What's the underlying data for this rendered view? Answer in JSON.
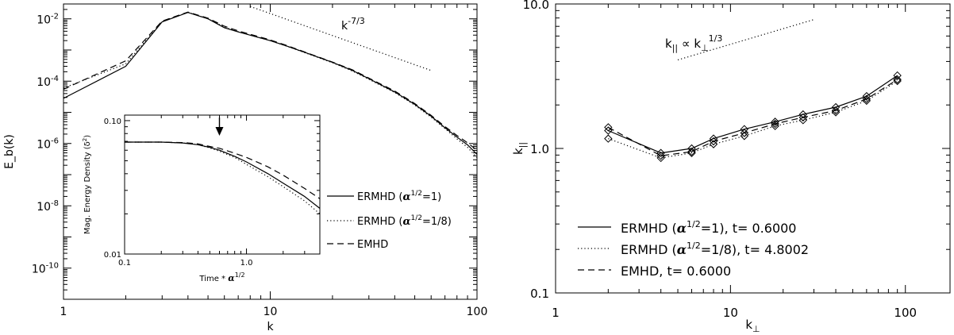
{
  "chart_data": [
    {
      "type": "line",
      "xscale": "log",
      "yscale": "log",
      "xlim": [
        1,
        100
      ],
      "ylim": [
        1e-11,
        0.03
      ],
      "xlabel": "k",
      "ylabel": "E_b(k)",
      "xticks": [
        {
          "v": 1,
          "label": "1"
        },
        {
          "v": 10,
          "label": "10"
        },
        {
          "v": 100,
          "label": "100"
        }
      ],
      "yticks": [
        {
          "v": 0.01,
          "base": "10",
          "exp": "-2"
        },
        {
          "v": 0.0001,
          "base": "10",
          "exp": "-4"
        },
        {
          "v": 1e-06,
          "base": "10",
          "exp": "-6"
        },
        {
          "v": 1e-08,
          "base": "10",
          "exp": "-8"
        },
        {
          "v": 1e-10,
          "base": "10",
          "exp": "-10"
        }
      ],
      "series": [
        {
          "name": "ERMHD (α1/2=1)",
          "dash": "solid",
          "x": [
            1,
            2,
            3,
            4,
            5,
            6,
            7,
            8,
            10,
            12,
            15,
            20,
            25,
            30,
            40,
            50,
            60,
            70,
            80,
            90,
            100
          ],
          "y": [
            2.8e-05,
            0.0003,
            0.008,
            0.016,
            0.01,
            0.0052,
            0.0038,
            0.003,
            0.002,
            0.00135,
            0.0008,
            0.0004,
            0.00022,
            0.00012,
            4.5e-05,
            1.8e-05,
            7.5e-06,
            3.2e-06,
            1.6e-06,
            9e-07,
            4.5e-07
          ]
        },
        {
          "name": "ERMHD (α1/2=1/8)",
          "dash": "dotted",
          "x": [
            1,
            2,
            3,
            4,
            5,
            6,
            7,
            8,
            10,
            12,
            15,
            20,
            25,
            30,
            40,
            50,
            60,
            70,
            80,
            90,
            100
          ],
          "y": [
            6e-05,
            0.00036,
            0.0082,
            0.0162,
            0.01,
            0.0054,
            0.0039,
            0.003,
            0.002,
            0.00133,
            0.00078,
            0.00039,
            0.00021,
            0.000115,
            4.3e-05,
            1.7e-05,
            7e-06,
            3e-06,
            1.4e-06,
            7.5e-07,
            3.5e-07
          ]
        },
        {
          "name": "EMHD",
          "dash": "dashed",
          "x": [
            1,
            2,
            3,
            4,
            5,
            6,
            7,
            8,
            10,
            12,
            15,
            20,
            25,
            30,
            40,
            50,
            60,
            70,
            80,
            90,
            100
          ],
          "y": [
            5.5e-05,
            0.00045,
            0.0085,
            0.0165,
            0.0105,
            0.0058,
            0.0041,
            0.0032,
            0.0021,
            0.0014,
            0.00082,
            0.00041,
            0.00023,
            0.000125,
            4.8e-05,
            1.9e-05,
            8e-06,
            3.5e-06,
            1.8e-06,
            1.05e-06,
            6e-07
          ]
        }
      ],
      "slope_line": {
        "x": [
          8,
          60
        ],
        "y": [
          0.025,
          0.00022
        ],
        "base": "k",
        "exp": "-7/3"
      },
      "legend": {
        "placement": "right-middle"
      },
      "inset": {
        "xscale": "log",
        "yscale": "log",
        "xlim": [
          0.1,
          4
        ],
        "ylim": [
          0.01,
          0.11
        ],
        "xlabel_main": "Time * ",
        "xlabel_alpha": "α",
        "xlabel_exp": "1/2",
        "ylabel_main": "Mag. Energy Density ",
        "ylabel_delta": "(δ",
        "ylabel_exp": "2",
        "ylabel_close": ")",
        "xticks": [
          {
            "v": 0.1,
            "label": "0.1"
          },
          {
            "v": 1,
            "label": "1.0"
          }
        ],
        "yticks": [
          {
            "v": 0.1,
            "label": "0.10"
          },
          {
            "v": 0.01,
            "label": "0.01"
          }
        ],
        "arrow_at": 0.6,
        "series": [
          {
            "dash": "solid",
            "x": [
              0.1,
              0.2,
              0.3,
              0.4,
              0.5,
              0.6,
              0.8,
              1.0,
              1.5,
              2.0,
              3.0,
              4.0
            ],
            "y": [
              0.069,
              0.069,
              0.068,
              0.066,
              0.063,
              0.06,
              0.054,
              0.049,
              0.04,
              0.034,
              0.027,
              0.022
            ]
          },
          {
            "dash": "dotted",
            "x": [
              0.1,
              0.2,
              0.3,
              0.4,
              0.5,
              0.6,
              0.8,
              1.0,
              1.5,
              2.0,
              3.0,
              4.0
            ],
            "y": [
              0.069,
              0.069,
              0.068,
              0.066,
              0.0625,
              0.059,
              0.053,
              0.047,
              0.038,
              0.032,
              0.025,
              0.02
            ]
          },
          {
            "dash": "dashed",
            "x": [
              0.1,
              0.2,
              0.3,
              0.4,
              0.5,
              0.6,
              0.8,
              1.0,
              1.5,
              2.0,
              3.0,
              4.0
            ],
            "y": [
              0.069,
              0.069,
              0.0685,
              0.067,
              0.064,
              0.062,
              0.057,
              0.053,
              0.045,
              0.039,
              0.031,
              0.026
            ]
          }
        ]
      }
    },
    {
      "type": "line",
      "xscale": "log",
      "yscale": "log",
      "xlim": [
        1,
        180
      ],
      "ylim": [
        0.1,
        10
      ],
      "xlabel": "k",
      "xlabel_sub": "⊥",
      "ylabel": "k",
      "ylabel_sub": "||",
      "xticks": [
        {
          "v": 1,
          "label": "1"
        },
        {
          "v": 10,
          "label": "10"
        },
        {
          "v": 100,
          "label": "100"
        }
      ],
      "yticks": [
        {
          "v": 10,
          "label": "10.0"
        },
        {
          "v": 1,
          "label": "1.0"
        },
        {
          "v": 0.1,
          "label": "0.1"
        }
      ],
      "series": [
        {
          "name": "ERMHD (α1/2=1), t= 0.6000",
          "dash": "solid",
          "x": [
            2,
            4,
            6,
            8,
            12,
            18,
            26,
            40,
            60,
            90
          ],
          "y": [
            1.33,
            0.93,
            1.0,
            1.17,
            1.36,
            1.53,
            1.72,
            1.93,
            2.3,
            3.2
          ]
        },
        {
          "name": "ERMHD (α1/2=1/8), t= 4.8002",
          "dash": "dotted",
          "x": [
            2,
            4,
            6,
            8,
            12,
            18,
            26,
            40,
            60,
            90
          ],
          "y": [
            1.17,
            0.86,
            0.93,
            1.07,
            1.22,
            1.43,
            1.57,
            1.78,
            2.14,
            2.93
          ]
        },
        {
          "name": "EMHD, t= 0.6000",
          "dash": "dashed",
          "x": [
            2,
            4,
            6,
            8,
            12,
            18,
            26,
            40,
            60,
            90
          ],
          "y": [
            1.4,
            0.89,
            0.95,
            1.12,
            1.28,
            1.48,
            1.64,
            1.83,
            2.2,
            3.0
          ]
        }
      ],
      "slope_line": {
        "x": [
          5,
          30
        ],
        "y": [
          4.1,
          7.8
        ],
        "lhs": "k",
        "lhs_sub": "||",
        "rel": " ∝ ",
        "rhs": "k",
        "rhs_sub": "⊥",
        "exp": "1/3"
      },
      "legend": {
        "placement": "bottom-left"
      }
    }
  ],
  "legend_text": {
    "left": [
      {
        "pre": "ERMHD (",
        "alpha": "α",
        "exp": "1/2",
        "post": "=1)"
      },
      {
        "pre": "ERMHD (",
        "alpha": "α",
        "exp": "1/2",
        "post": "=1/8)"
      },
      {
        "pre": "EMHD",
        "alpha": "",
        "exp": "",
        "post": ""
      }
    ],
    "right": [
      {
        "pre": "ERMHD (",
        "alpha": "α",
        "exp": "1/2",
        "post": "=1), t= 0.6000"
      },
      {
        "pre": "ERMHD (",
        "alpha": "α",
        "exp": "1/2",
        "post": "=1/8), t= 4.8002"
      },
      {
        "pre": "EMHD, t= 0.6000",
        "alpha": "",
        "exp": "",
        "post": ""
      }
    ]
  }
}
